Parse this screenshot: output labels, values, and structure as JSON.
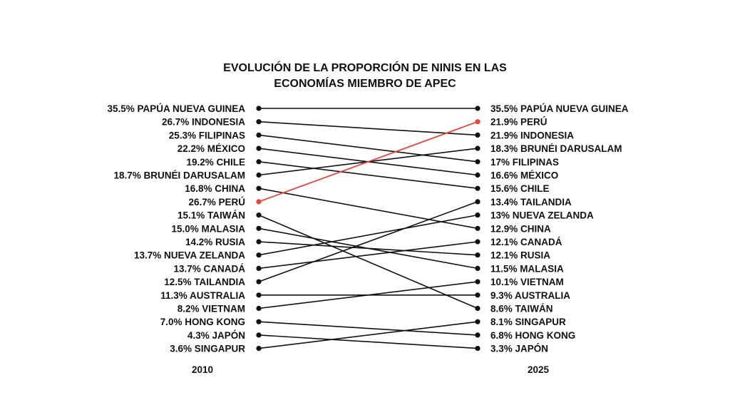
{
  "chart_data": {
    "type": "slope",
    "title_lines": [
      "EVOLUCIÓN DE LA PROPORCIÓN DE NINIS EN LAS",
      "ECONOMÍAS MIEMBRO DE APEC"
    ],
    "periods": [
      "2010",
      "2025"
    ],
    "highlight_color": "#e8453c",
    "line_color": "#111111",
    "left": [
      {
        "label": "35.5% PAPÚA NUEVA GUINEA",
        "value": 35.5
      },
      {
        "label": "26.7% INDONESIA",
        "value": 26.7
      },
      {
        "label": "25.3% FILIPINAS",
        "value": 25.3
      },
      {
        "label": "22.2% MÉXICO",
        "value": 22.2
      },
      {
        "label": "19.2% CHILE",
        "value": 19.2
      },
      {
        "label": "18.7% BRUNÉI DARUSALAM",
        "value": 18.7
      },
      {
        "label": "16.8% CHINA",
        "value": 16.8
      },
      {
        "label": "26.7% PERÚ",
        "value": 26.7
      },
      {
        "label": "15.1% TAIWÁN",
        "value": 15.1
      },
      {
        "label": "15.0% MALASIA",
        "value": 15.0
      },
      {
        "label": "14.2% RUSIA",
        "value": 14.2
      },
      {
        "label": "13.7% NUEVA ZELANDA",
        "value": 13.7
      },
      {
        "label": "13.7% CANADÁ",
        "value": 13.7
      },
      {
        "label": "12.5% TAILANDIA",
        "value": 12.5
      },
      {
        "label": "11.3% AUSTRALIA",
        "value": 11.3
      },
      {
        "label": "8.2% VIETNAM",
        "value": 8.2
      },
      {
        "label": "7.0% HONG KONG",
        "value": 7.0
      },
      {
        "label": "4.3% JAPÓN",
        "value": 4.3
      },
      {
        "label": "3.6% SINGAPUR",
        "value": 3.6
      }
    ],
    "right": [
      {
        "label": "35.5% PAPÚA NUEVA GUINEA",
        "value": 35.5
      },
      {
        "label": "21.9% PERÚ",
        "value": 21.9
      },
      {
        "label": "21.9% INDONESIA",
        "value": 21.9
      },
      {
        "label": "18.3% BRUNÉI DARUSALAM",
        "value": 18.3
      },
      {
        "label": "17% FILIPINAS",
        "value": 17
      },
      {
        "label": "16.6% MÉXICO",
        "value": 16.6
      },
      {
        "label": "15.6% CHILE",
        "value": 15.6
      },
      {
        "label": "13.4% TAILANDIA",
        "value": 13.4
      },
      {
        "label": "13% NUEVA ZELANDA",
        "value": 13
      },
      {
        "label": "12.9% CHINA",
        "value": 12.9
      },
      {
        "label": "12.1% CANADÁ",
        "value": 12.1
      },
      {
        "label": "12.1% RUSIA",
        "value": 12.1
      },
      {
        "label": "11.5% MALASIA",
        "value": 11.5
      },
      {
        "label": "10.1% VIETNAM",
        "value": 10.1
      },
      {
        "label": "9.3% AUSTRALIA",
        "value": 9.3
      },
      {
        "label": "8.6% TAIWÁN",
        "value": 8.6
      },
      {
        "label": "8.1% SINGAPUR",
        "value": 8.1
      },
      {
        "label": "6.8% HONG KONG",
        "value": 6.8
      },
      {
        "label": "3.3% JAPÓN",
        "value": 3.3
      }
    ],
    "connections": [
      {
        "from": 0,
        "to": 0,
        "highlight": false
      },
      {
        "from": 1,
        "to": 2,
        "highlight": false
      },
      {
        "from": 2,
        "to": 4,
        "highlight": false
      },
      {
        "from": 3,
        "to": 5,
        "highlight": false
      },
      {
        "from": 4,
        "to": 6,
        "highlight": false
      },
      {
        "from": 5,
        "to": 3,
        "highlight": false
      },
      {
        "from": 6,
        "to": 9,
        "highlight": false
      },
      {
        "from": 7,
        "to": 1,
        "highlight": true
      },
      {
        "from": 8,
        "to": 15,
        "highlight": false
      },
      {
        "from": 9,
        "to": 12,
        "highlight": false
      },
      {
        "from": 10,
        "to": 11,
        "highlight": false
      },
      {
        "from": 11,
        "to": 8,
        "highlight": false
      },
      {
        "from": 12,
        "to": 10,
        "highlight": false
      },
      {
        "from": 13,
        "to": 7,
        "highlight": false
      },
      {
        "from": 14,
        "to": 14,
        "highlight": false
      },
      {
        "from": 15,
        "to": 13,
        "highlight": false
      },
      {
        "from": 16,
        "to": 17,
        "highlight": false
      },
      {
        "from": 17,
        "to": 18,
        "highlight": false
      },
      {
        "from": 18,
        "to": 16,
        "highlight": false
      }
    ]
  }
}
